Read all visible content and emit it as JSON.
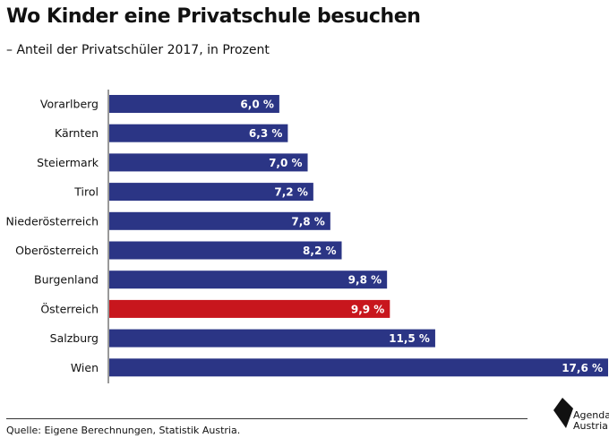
{
  "title": "Wo Kinder eine Privatschule besuchen",
  "subtitle": "– Anteil der Privatschüler 2017, in Prozent",
  "source": "Quelle: Eigene Berechnungen, Statistik Austria.",
  "logo": {
    "line1": "Agenda",
    "line2": "Austria",
    "icon": "agenda-austria-logo-icon"
  },
  "colors": {
    "bar": "#2b3585",
    "highlight": "#c8161d",
    "axis": "#333333"
  },
  "chart_data": {
    "type": "bar",
    "orientation": "horizontal",
    "categories": [
      "Vorarlberg",
      "Kärnten",
      "Steiermark",
      "Tirol",
      "Niederösterreich",
      "Oberösterreich",
      "Burgenland",
      "Österreich",
      "Salzburg",
      "Wien"
    ],
    "values": [
      6.0,
      6.3,
      7.0,
      7.2,
      7.8,
      8.2,
      9.8,
      9.9,
      11.5,
      17.6
    ],
    "value_labels": [
      "6,0 %",
      "6,3 %",
      "7,0 %",
      "7,2 %",
      "7,8 %",
      "8,2 %",
      "9,8 %",
      "9,9 %",
      "11,5 %",
      "17,6 %"
    ],
    "highlight": "Österreich",
    "xlim": [
      0,
      17.6
    ],
    "grid": false
  }
}
